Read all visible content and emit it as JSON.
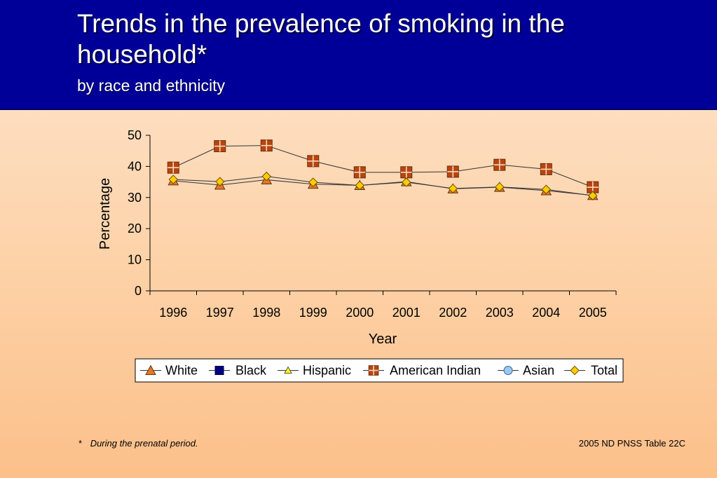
{
  "slide": {
    "title": "Trends in the prevalence of smoking in the household*",
    "subtitle": "by race and ethnicity",
    "footnote_marker": "*",
    "footnote_text": "During the prenatal period.",
    "source": "2005 ND PNSS Table 22C",
    "header_color": "#000099"
  },
  "chart_data": {
    "type": "line",
    "xlabel": "Year",
    "ylabel": "Percentage",
    "ylim": [
      0,
      50
    ],
    "yticks": [
      0,
      10,
      20,
      30,
      40,
      50
    ],
    "categories": [
      "1996",
      "1997",
      "1998",
      "1999",
      "2000",
      "2001",
      "2002",
      "2003",
      "2004",
      "2005"
    ],
    "grid": false,
    "legend_position": "bottom",
    "series": [
      {
        "name": "White",
        "marker": "triangle",
        "color": "#e8742a",
        "values": [
          35.4,
          34.0,
          35.7,
          34.3,
          33.9,
          35.1,
          32.8,
          33.3,
          32.2,
          30.7
        ]
      },
      {
        "name": "Black",
        "marker": "square",
        "color": "#000080",
        "values": [
          null,
          null,
          null,
          null,
          null,
          null,
          null,
          null,
          null,
          null
        ]
      },
      {
        "name": "Hispanic",
        "marker": "triangle-small",
        "color": "#ffff00",
        "values": [
          null,
          null,
          null,
          null,
          null,
          null,
          null,
          null,
          null,
          null
        ]
      },
      {
        "name": "American Indian",
        "marker": "square-cross",
        "color": "#b8450f",
        "values": [
          39.6,
          46.5,
          46.7,
          41.7,
          38.1,
          38.1,
          38.3,
          40.5,
          39.1,
          33.3
        ]
      },
      {
        "name": "Asian",
        "marker": "circle",
        "color": "#9bc9ef",
        "values": [
          null,
          null,
          null,
          null,
          null,
          null,
          null,
          null,
          null,
          null
        ]
      },
      {
        "name": "Total",
        "marker": "diamond",
        "color": "#ffcc00",
        "values": [
          35.8,
          35.1,
          36.8,
          34.9,
          33.9,
          34.9,
          32.9,
          33.4,
          32.6,
          30.6
        ]
      }
    ]
  }
}
